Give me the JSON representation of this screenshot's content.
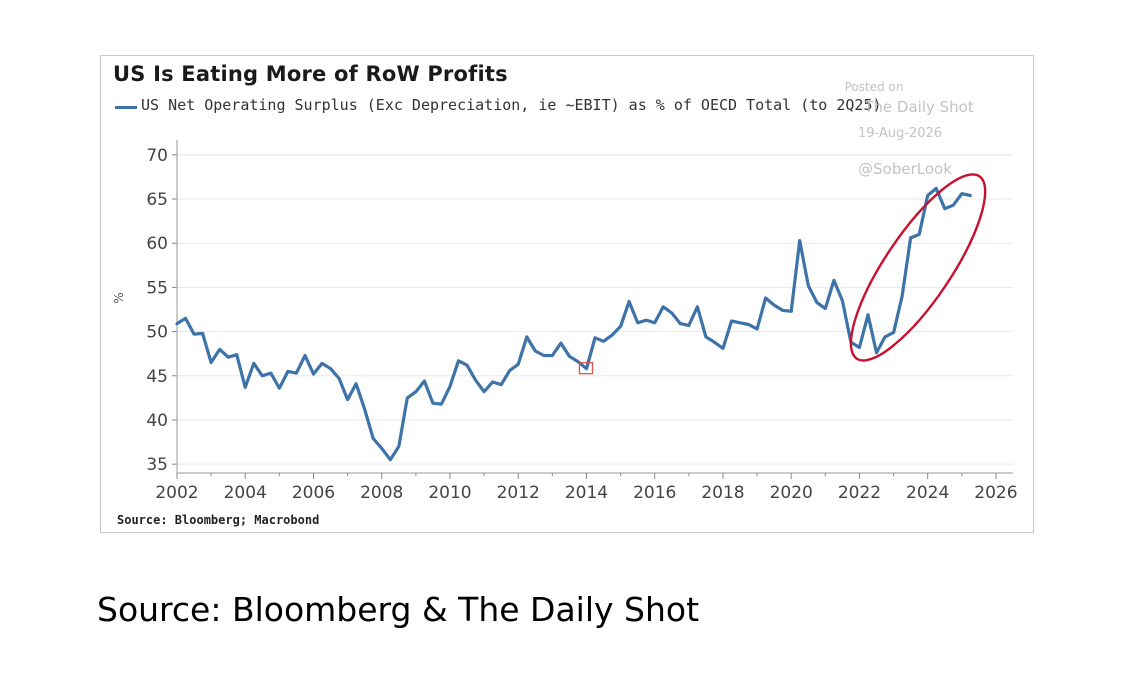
{
  "caption": "Source: Bloomberg & The Daily Shot",
  "watermark": {
    "posted": "Posted on",
    "site": "The Daily Shot",
    "date": "19-Aug-2026",
    "handle": "@SoberLook"
  },
  "colors": {
    "series": "#3d73a8",
    "highlight_ellipse": "#c8102e",
    "marker": "#d9534f",
    "grid": "#e8e8e8"
  },
  "chart_data": {
    "type": "line",
    "title": "US Is Eating More of RoW Profits",
    "series": [
      {
        "name": "US Net Operating Surplus (Exc Depreciation, ie ~EBIT) as % of OECD Total (to 2Q25)",
        "x": [
          2002.0,
          2002.25,
          2002.5,
          2002.75,
          2003.0,
          2003.25,
          2003.5,
          2003.75,
          2004.0,
          2004.25,
          2004.5,
          2004.75,
          2005.0,
          2005.25,
          2005.5,
          2005.75,
          2006.0,
          2006.25,
          2006.5,
          2006.75,
          2007.0,
          2007.25,
          2007.5,
          2007.75,
          2008.0,
          2008.25,
          2008.5,
          2008.75,
          2009.0,
          2009.25,
          2009.5,
          2009.75,
          2010.0,
          2010.25,
          2010.5,
          2010.75,
          2011.0,
          2011.25,
          2011.5,
          2011.75,
          2012.0,
          2012.25,
          2012.5,
          2012.75,
          2013.0,
          2013.25,
          2013.5,
          2013.75,
          2014.0,
          2014.25,
          2014.5,
          2014.75,
          2015.0,
          2015.25,
          2015.5,
          2015.75,
          2016.0,
          2016.25,
          2016.5,
          2016.75,
          2017.0,
          2017.25,
          2017.5,
          2017.75,
          2018.0,
          2018.25,
          2018.5,
          2018.75,
          2019.0,
          2019.25,
          2019.5,
          2019.75,
          2020.0,
          2020.25,
          2020.5,
          2020.75,
          2021.0,
          2021.25,
          2021.5,
          2021.75,
          2022.0,
          2022.25,
          2022.5,
          2022.75,
          2023.0,
          2023.25,
          2023.5,
          2023.75,
          2024.0,
          2024.25,
          2024.5,
          2024.75,
          2025.0,
          2025.25
        ],
        "values": [
          50.9,
          51.5,
          49.7,
          49.8,
          46.5,
          48.0,
          47.1,
          47.4,
          43.7,
          46.4,
          45.0,
          45.3,
          43.6,
          45.5,
          45.3,
          47.3,
          45.2,
          46.4,
          45.8,
          44.7,
          42.3,
          44.1,
          41.2,
          37.9,
          36.8,
          35.5,
          37.0,
          42.5,
          43.2,
          44.4,
          41.9,
          41.8,
          43.8,
          46.7,
          46.2,
          44.5,
          43.2,
          44.3,
          44.0,
          45.6,
          46.3,
          49.4,
          47.8,
          47.3,
          47.3,
          48.7,
          47.2,
          46.6,
          45.8,
          49.3,
          48.9,
          49.6,
          50.6,
          53.4,
          51.0,
          51.3,
          51.0,
          52.8,
          52.1,
          50.9,
          50.7,
          52.8,
          49.4,
          48.8,
          48.1,
          51.2,
          51.0,
          50.8,
          50.3,
          53.8,
          53.0,
          52.4,
          52.3,
          60.3,
          55.2,
          53.3,
          52.6,
          55.8,
          53.5,
          48.8,
          48.2,
          51.9,
          47.6,
          49.4,
          49.9,
          54.0,
          60.6,
          61.0,
          65.4,
          66.2,
          63.9,
          64.3,
          65.6,
          65.4
        ]
      }
    ],
    "xlabel": "",
    "ylabel": "%",
    "xlim": [
      2002,
      2026.5
    ],
    "ylim": [
      34,
      71
    ],
    "xticks": [
      "2002",
      "2004",
      "2006",
      "2008",
      "2010",
      "2012",
      "2014",
      "2016",
      "2018",
      "2020",
      "2022",
      "2024",
      "2026"
    ],
    "yticks": [
      "35",
      "40",
      "45",
      "50",
      "55",
      "60",
      "65",
      "70"
    ],
    "grid": true,
    "legend_position": "top-left",
    "highlight_marker_x": 2014.0,
    "highlight_region_x": [
      2021.9,
      2025.3
    ],
    "source": "Source: Bloomberg; Macrobond"
  }
}
